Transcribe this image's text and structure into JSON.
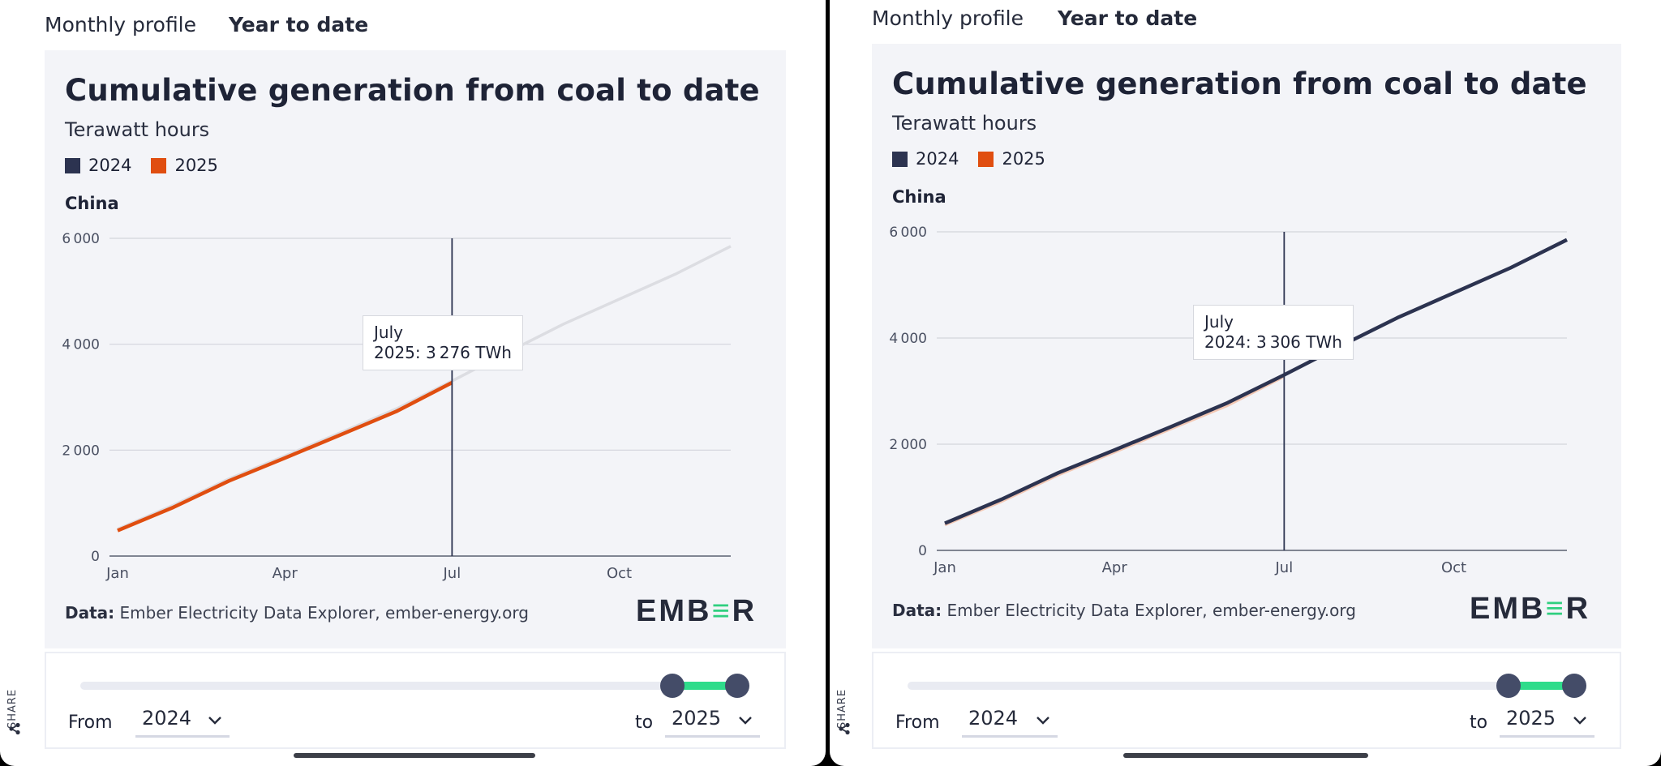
{
  "panels": [
    {
      "id": "left",
      "tabs": [
        "Monthly profile",
        "Year to date"
      ],
      "active_tab": "Year to date",
      "title": "Cumulative generation from coal to date",
      "subtitle": "Terawatt hours",
      "legend": [
        {
          "label": "2024",
          "color": "#2c3350"
        },
        {
          "label": "2025",
          "color": "#e04e10"
        }
      ],
      "region": "China",
      "tooltip": {
        "month": "July",
        "series": "2025:",
        "value": "3 276 TWh"
      },
      "source_label": "Data:",
      "source_text": "Ember Electricity Data Explorer, ember-energy.org",
      "logo": {
        "pre": "EMB",
        "mid": "≡",
        "post": "R"
      },
      "range": {
        "from_label": "From",
        "from_value": "2024",
        "to_label": "to",
        "to_value": "2025"
      },
      "share_label": "SHARE"
    },
    {
      "id": "right",
      "tabs": [
        "Monthly profile",
        "Year to date"
      ],
      "active_tab": "Year to date",
      "title": "Cumulative generation from coal to date",
      "subtitle": "Terawatt hours",
      "legend": [
        {
          "label": "2024",
          "color": "#2c3350"
        },
        {
          "label": "2025",
          "color": "#e04e10"
        }
      ],
      "region": "China",
      "tooltip": {
        "month": "July",
        "series": "2024:",
        "value": "3 306 TWh"
      },
      "source_label": "Data:",
      "source_text": "Ember Electricity Data Explorer, ember-energy.org",
      "logo": {
        "pre": "EMB",
        "mid": "≡",
        "post": "R"
      },
      "range": {
        "from_label": "From",
        "from_value": "2024",
        "to_label": "to",
        "to_value": "2025"
      },
      "share_label": "SHARE"
    }
  ],
  "chart_data": [
    {
      "type": "line",
      "title": "Cumulative generation from coal to date",
      "ylabel": "Terawatt hours",
      "region": "China",
      "x_ticks": [
        "Jan",
        "Apr",
        "Jul",
        "Oct"
      ],
      "y_ticks": [
        "0",
        "2 000",
        "4 000",
        "6 000"
      ],
      "ylim": [
        0,
        6000
      ],
      "months": [
        1,
        2,
        3,
        4,
        5,
        6,
        7,
        8,
        9,
        10,
        11,
        12
      ],
      "series": [
        {
          "name": "2024",
          "values": [
            510,
            960,
            1460,
            1890,
            2330,
            2780,
            3306,
            3850,
            4380,
            4850,
            5320,
            5850
          ],
          "highlighted": false
        },
        {
          "name": "2025",
          "values": [
            480,
            920,
            1420,
            1850,
            2290,
            2730,
            3276
          ],
          "highlighted": true
        }
      ],
      "hover_month": 7
    },
    {
      "type": "line",
      "title": "Cumulative generation from coal to date",
      "ylabel": "Terawatt hours",
      "region": "China",
      "x_ticks": [
        "Jan",
        "Apr",
        "Jul",
        "Oct"
      ],
      "y_ticks": [
        "0",
        "2 000",
        "4 000",
        "6 000"
      ],
      "ylim": [
        0,
        6000
      ],
      "months": [
        1,
        2,
        3,
        4,
        5,
        6,
        7,
        8,
        9,
        10,
        11,
        12
      ],
      "series": [
        {
          "name": "2024",
          "values": [
            510,
            960,
            1460,
            1890,
            2330,
            2780,
            3306,
            3850,
            4380,
            4850,
            5320,
            5850
          ],
          "highlighted": true
        },
        {
          "name": "2025",
          "values": [
            480,
            920,
            1420,
            1850,
            2290,
            2730,
            3276
          ],
          "highlighted": false
        }
      ],
      "hover_month": 7
    }
  ]
}
